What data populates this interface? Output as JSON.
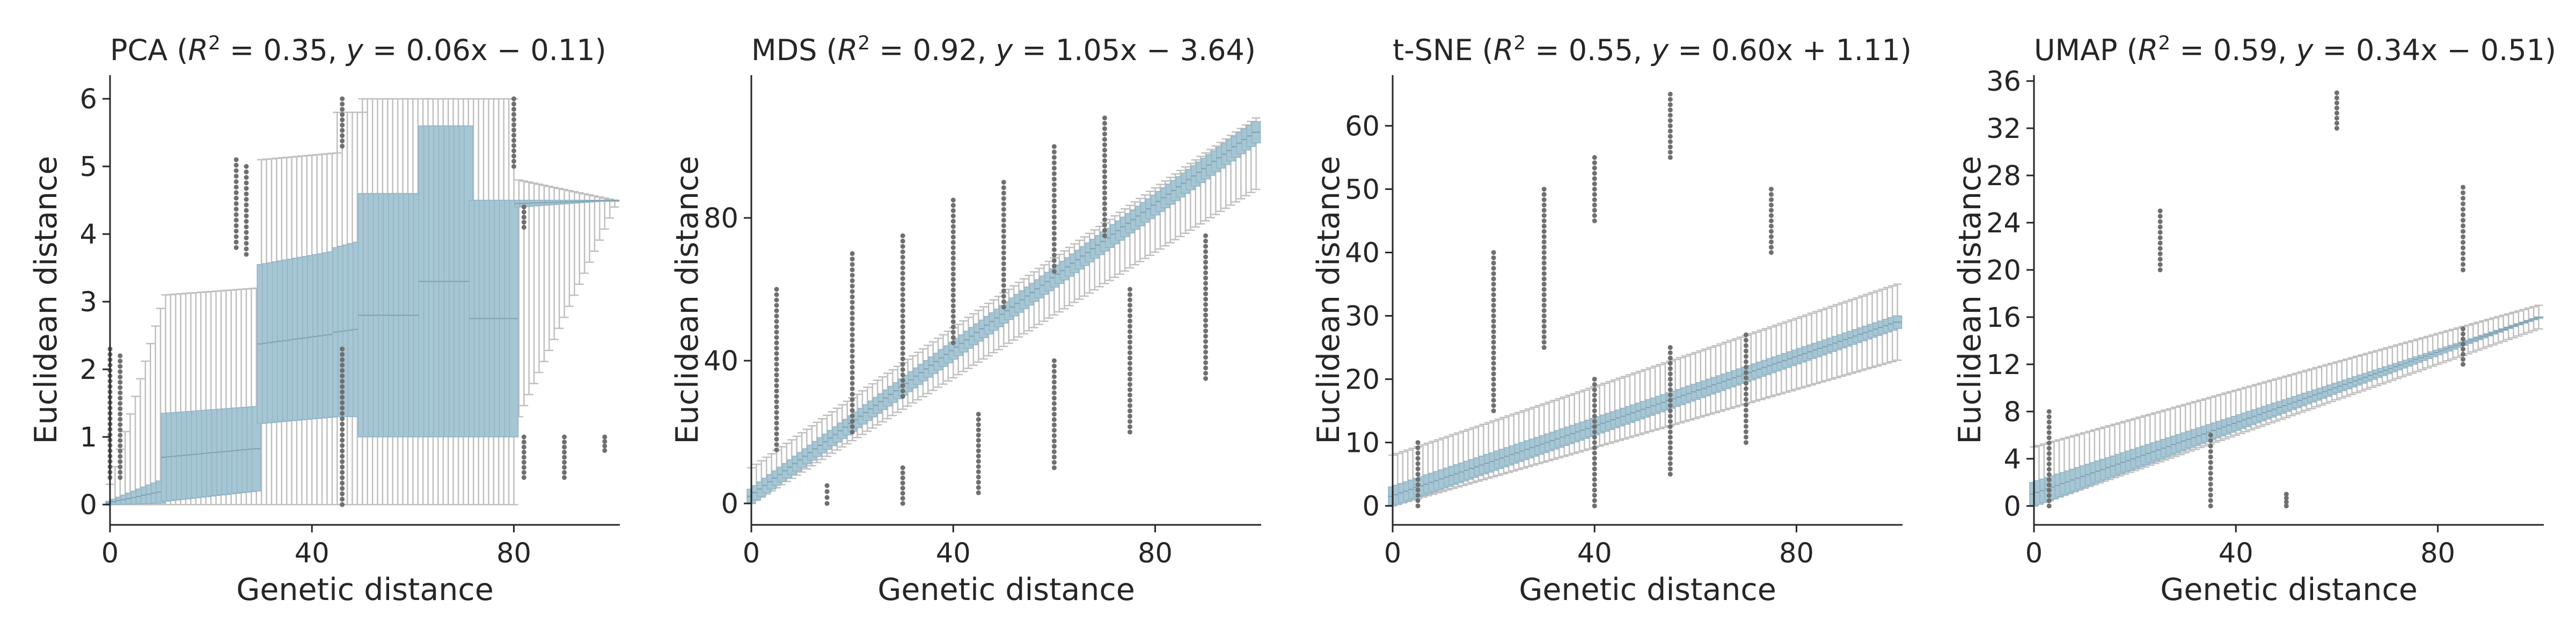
{
  "colors": {
    "box_fill": "#a7c6d4",
    "box_edge": "#8fb4c6",
    "whisker": "#bfbfbf",
    "outlier": "#6f6f6f",
    "median": "#7f9fb0",
    "axis": "#262626"
  },
  "chart_data": [
    {
      "type": "box",
      "method": "PCA",
      "title_name": "PCA",
      "title_r2": "0.35",
      "title_eq": "0.06x − 0.11",
      "xlabel": "Genetic distance",
      "ylabel": "Euclidean distance",
      "xlim": [
        0,
        101
      ],
      "ylim": [
        -0.3,
        6.35
      ],
      "xticks": [
        0,
        40,
        80
      ],
      "yticks": [
        0,
        1,
        2,
        3,
        4,
        5,
        6
      ],
      "segments": [
        {
          "x": [
            0,
            10
          ],
          "q1": [
            0.0,
            0.02
          ],
          "q3": [
            0.05,
            0.35
          ],
          "lo": [
            0,
            0
          ],
          "hi": [
            0.3,
            2.9
          ],
          "out": [
            [
              0,
              0.4,
              2.3
            ],
            [
              2,
              0.4,
              2.2
            ]
          ]
        },
        {
          "x": [
            11,
            29
          ],
          "q1": [
            0.05,
            0.2
          ],
          "q3": [
            1.35,
            1.45
          ],
          "lo": [
            0,
            0
          ],
          "hi": [
            3.1,
            3.2
          ],
          "out": [
            [
              25,
              3.8,
              5.1
            ],
            [
              27,
              3.7,
              5.0
            ]
          ]
        },
        {
          "x": [
            30,
            45
          ],
          "q1": [
            1.2,
            1.3
          ],
          "q3": [
            3.55,
            3.75
          ],
          "lo": [
            0,
            0
          ],
          "hi": [
            5.1,
            5.2
          ],
          "out": []
        },
        {
          "x": [
            45,
            50
          ],
          "q1": [
            1.3,
            1.3
          ],
          "q3": [
            3.8,
            3.9
          ],
          "lo": [
            0,
            0
          ],
          "hi": [
            5.8,
            5.8
          ],
          "out": [
            [
              46,
              0,
              2.3
            ],
            [
              46,
              5.3,
              6.0
            ]
          ]
        },
        {
          "x": [
            50,
            61
          ],
          "q1": [
            1.0,
            1.0
          ],
          "q3": [
            4.6,
            4.6
          ],
          "lo": [
            0,
            0
          ],
          "hi": [
            6.0,
            6.0
          ],
          "out": []
        },
        {
          "x": [
            62,
            71
          ],
          "q1": [
            1.0,
            1.0
          ],
          "q3": [
            5.6,
            5.6
          ],
          "lo": [
            0,
            0
          ],
          "hi": [
            6.0,
            6.0
          ],
          "out": []
        },
        {
          "x": [
            72,
            80
          ],
          "q1": [
            1.0,
            1.0
          ],
          "q3": [
            4.5,
            4.5
          ],
          "lo": [
            0,
            0
          ],
          "hi": [
            6.0,
            6.0
          ],
          "out": [
            [
              80,
              5.0,
              6.0
            ]
          ]
        },
        {
          "x": [
            81,
            100
          ],
          "q1": [
            4.4,
            4.5
          ],
          "q3": [
            4.5,
            4.5
          ],
          "lo": [
            1.3,
            4.4
          ],
          "hi": [
            4.8,
            4.5
          ],
          "out": [
            [
              82,
              0.4,
              1.0
            ],
            [
              90,
              0.4,
              1.0
            ],
            [
              98,
              0.8,
              1.0
            ],
            [
              82,
              4.1,
              4.4
            ]
          ]
        }
      ]
    },
    {
      "type": "box",
      "method": "MDS",
      "title_name": "MDS",
      "title_r2": "0.92",
      "title_eq": "1.05x − 3.64",
      "xlabel": "Genetic distance",
      "ylabel": "Euclidean distance",
      "xlim": [
        0,
        101
      ],
      "ylim": [
        -6,
        120
      ],
      "xticks": [
        0,
        40,
        80
      ],
      "yticks": [
        0,
        40,
        80
      ],
      "segments": [
        {
          "x": [
            0,
            100
          ],
          "q1": [
            0,
            101
          ],
          "q3": [
            4,
            107
          ],
          "lo": [
            0,
            88
          ],
          "hi": [
            10,
            108
          ],
          "out": [
            [
              5,
              15,
              60
            ],
            [
              20,
              20,
              70
            ],
            [
              30,
              30,
              75
            ],
            [
              40,
              45,
              85
            ],
            [
              50,
              55,
              90
            ],
            [
              60,
              65,
              100
            ],
            [
              70,
              75,
              108
            ],
            [
              15,
              0,
              5
            ],
            [
              30,
              0,
              10
            ],
            [
              45,
              3,
              25
            ],
            [
              60,
              10,
              40
            ],
            [
              75,
              20,
              60
            ],
            [
              90,
              35,
              75
            ]
          ]
        }
      ]
    },
    {
      "type": "box",
      "method": "t-SNE",
      "title_name": "t-SNE",
      "title_r2": "0.55",
      "title_eq": "0.60x + 1.11",
      "xlabel": "Genetic distance",
      "ylabel": "Euclidean distance",
      "xlim": [
        0,
        101
      ],
      "ylim": [
        -3,
        68
      ],
      "xticks": [
        0,
        40,
        80
      ],
      "yticks": [
        0,
        10,
        20,
        30,
        40,
        50,
        60
      ],
      "segments": [
        {
          "x": [
            0,
            100
          ],
          "q1": [
            0,
            28
          ],
          "q3": [
            3,
            30
          ],
          "lo": [
            0,
            23
          ],
          "hi": [
            8,
            35
          ],
          "out": [
            [
              5,
              0,
              10
            ],
            [
              20,
              15,
              40
            ],
            [
              30,
              25,
              50
            ],
            [
              40,
              45,
              55
            ],
            [
              55,
              55,
              65
            ],
            [
              75,
              40,
              50
            ],
            [
              40,
              0,
              20
            ],
            [
              55,
              5,
              25
            ],
            [
              70,
              10,
              27
            ]
          ]
        }
      ]
    },
    {
      "type": "box",
      "method": "UMAP",
      "title_name": "UMAP",
      "title_r2": "0.59",
      "title_eq": "0.34x − 0.51",
      "xlabel": "Genetic distance",
      "ylabel": "Euclidean distance",
      "xlim": [
        0,
        101
      ],
      "ylim": [
        -1.6,
        36.5
      ],
      "xticks": [
        0,
        40,
        80
      ],
      "yticks": [
        0,
        4,
        8,
        12,
        16,
        20,
        24,
        28,
        32,
        36
      ],
      "segments": [
        {
          "x": [
            0,
            100
          ],
          "q1": [
            0,
            16
          ],
          "q3": [
            2,
            16
          ],
          "lo": [
            0,
            15
          ],
          "hi": [
            5,
            17
          ],
          "out": [
            [
              3,
              0,
              8
            ],
            [
              25,
              20,
              25
            ],
            [
              35,
              0,
              6
            ],
            [
              50,
              0,
              1
            ],
            [
              60,
              32,
              35
            ],
            [
              85,
              12,
              15
            ],
            [
              85,
              20,
              27
            ]
          ]
        }
      ]
    }
  ]
}
